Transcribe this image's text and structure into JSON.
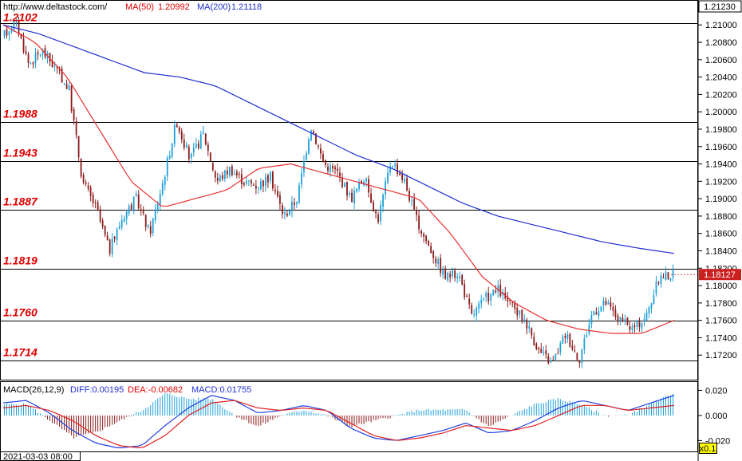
{
  "header": {
    "site": "http://www.deltastock.com/",
    "ma50_label": "MA(50)",
    "ma50_value": "1.20992",
    "ma200_label": "MA(200)",
    "ma200_value": "1.21118"
  },
  "macd_header": {
    "label": "MACD(26,12,9)",
    "diff": "DIFF:0.00195",
    "dea": "DEA:-0.00682",
    "macd": "MACD:0.01755"
  },
  "bottom": {
    "date": "2021-03-03 08:00",
    "zoom": "x0.1"
  },
  "colors": {
    "bull": "#1fa0d8",
    "bear": "#8b1a1a",
    "ma50": "#e83030",
    "ma200": "#2030d0",
    "level_text": "#e00000",
    "diff_line": "#1f3fe0",
    "dea_line": "#e02020"
  },
  "chart_data": {
    "type": "candlestick",
    "y_axis_range": [
      1.17,
      1.2125
    ],
    "y_ticks": [
      "1.21000",
      "1.20800",
      "1.20600",
      "1.20400",
      "1.20200",
      "1.20000",
      "1.19800",
      "1.19600",
      "1.19400",
      "1.19200",
      "1.19000",
      "1.18800",
      "1.18600",
      "1.18400",
      "1.18200",
      "1.18000",
      "1.17800",
      "1.17600",
      "1.17400",
      "1.17200"
    ],
    "top_price_label": "1.21230",
    "current_price_label": "1.18127",
    "current_price": 1.18127,
    "levels": [
      {
        "label": "1.2102",
        "value": 1.2102
      },
      {
        "label": "1.1988",
        "value": 1.1988
      },
      {
        "label": "1.1943",
        "value": 1.1943
      },
      {
        "label": "1.1887",
        "value": 1.1887
      },
      {
        "label": "1.1819",
        "value": 1.1819
      },
      {
        "label": "1.1760",
        "value": 1.176
      },
      {
        "label": "1.1714",
        "value": 1.1714
      }
    ],
    "price_path": [
      1.2085,
      1.2105,
      1.2055,
      1.207,
      1.205,
      1.2025,
      1.192,
      1.189,
      1.184,
      1.188,
      1.19,
      1.186,
      1.192,
      1.199,
      1.1945,
      1.1975,
      1.192,
      1.1935,
      1.192,
      1.1915,
      1.1925,
      1.188,
      1.19,
      1.1985,
      1.194,
      1.193,
      1.19,
      1.1925,
      1.1875,
      1.1945,
      1.192,
      1.187,
      1.184,
      1.181,
      1.1815,
      1.1765,
      1.1785,
      1.1795,
      1.1775,
      1.176,
      1.1725,
      1.171,
      1.1745,
      1.1715,
      1.177,
      1.178,
      1.176,
      1.175,
      1.1765,
      1.181,
      1.1813
    ],
    "ma50": [
      1.21,
      1.208,
      1.204,
      1.198,
      1.192,
      1.189,
      1.19,
      1.191,
      1.1935,
      1.194,
      1.193,
      1.192,
      1.191,
      1.19,
      1.186,
      1.181,
      1.178,
      1.176,
      1.175,
      1.1745,
      1.1745,
      1.176
    ],
    "ma200": [
      1.21,
      1.209,
      1.2075,
      1.206,
      1.2045,
      1.204,
      1.203,
      1.201,
      1.199,
      1.197,
      1.195,
      1.1935,
      1.1915,
      1.1895,
      1.188,
      1.187,
      1.186,
      1.185,
      1.1843,
      1.1837
    ],
    "macd_axis": {
      "range": [
        -0.028,
        0.026
      ],
      "ticks": [
        "0.020",
        "0.000",
        "-0.020"
      ],
      "tick_values": [
        0.02,
        0.0,
        -0.02
      ]
    },
    "diff_path": [
      0.01,
      0.012,
      0.002,
      -0.012,
      -0.022,
      -0.026,
      -0.024,
      -0.008,
      0.006,
      0.016,
      0.012,
      0.002,
      0.004,
      0.008,
      0.004,
      -0.01,
      -0.018,
      -0.02,
      -0.016,
      -0.012,
      -0.006,
      -0.014,
      -0.012,
      -0.004,
      0.006,
      0.012,
      0.008,
      0.004,
      0.01,
      0.016
    ],
    "dea_path": [
      0.006,
      0.008,
      0.004,
      -0.004,
      -0.016,
      -0.024,
      -0.026,
      -0.016,
      0.0,
      0.01,
      0.012,
      0.006,
      0.004,
      0.006,
      0.004,
      -0.006,
      -0.016,
      -0.02,
      -0.018,
      -0.014,
      -0.008,
      -0.01,
      -0.012,
      -0.008,
      0.0,
      0.008,
      0.008,
      0.004,
      0.006,
      0.008
    ]
  }
}
